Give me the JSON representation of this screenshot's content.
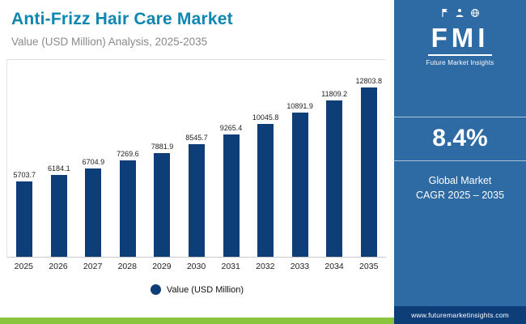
{
  "header": {
    "title": "Anti-Frizz Hair Care Market",
    "subtitle": "Value (USD Million) Analysis, 2025-2035"
  },
  "chart_data": {
    "type": "bar",
    "title": "Anti-Frizz Hair Care Market",
    "subtitle": "Value (USD Million) Analysis, 2025-2035",
    "categories": [
      "2025",
      "2026",
      "2027",
      "2028",
      "2029",
      "2030",
      "2031",
      "2032",
      "2033",
      "2034",
      "2035"
    ],
    "values": [
      5703.7,
      6184.1,
      6704.9,
      7269.6,
      7881.9,
      8545.7,
      9265.4,
      10045.8,
      10891.9,
      11809.2,
      12803.8
    ],
    "xlabel": "",
    "ylabel": "Value (USD Million)",
    "ylim": [
      0,
      13000
    ],
    "grid": false,
    "legend": [
      "Value (USD Million)"
    ],
    "legend_position": "bottom"
  },
  "legend": {
    "label": "Value (USD Million)"
  },
  "sidebar": {
    "logo": {
      "text": "FMI",
      "subtext": "Future Market Insights"
    },
    "cagr_value": "8.4%",
    "cagr_line1": "Global Market",
    "cagr_line2": "CAGR 2025 – 2035",
    "website": "www.futuremarketinsights.com"
  },
  "icons": [
    "flag-icon",
    "person-icon",
    "globe-icon"
  ],
  "colors": {
    "accent_teal": "#0e86b1",
    "bar_navy": "#0d3e77",
    "panel_blue": "#2e6aa4",
    "footer_navy": "#0d3e77",
    "green": "#8bc43f"
  }
}
